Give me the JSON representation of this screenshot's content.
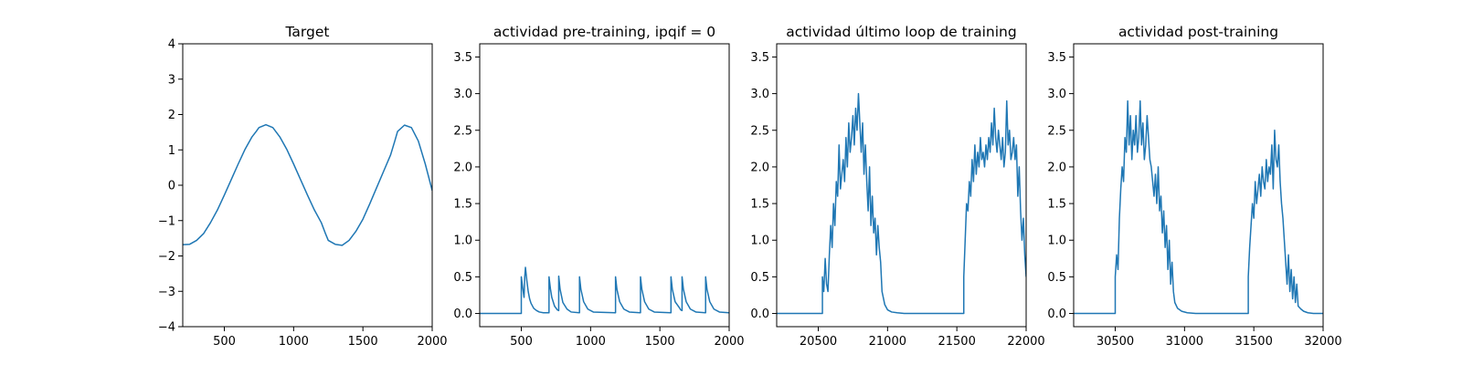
{
  "chart_data": [
    {
      "type": "line",
      "title": "Target",
      "xlim": [
        200,
        2000
      ],
      "ylim": [
        -4,
        4
      ],
      "xticks": [
        500,
        1000,
        1500,
        2000
      ],
      "yticks": [
        -4,
        -3,
        -2,
        -1,
        0,
        1,
        2,
        3,
        4
      ],
      "xtick_labels": [
        "500",
        "1000",
        "1500",
        "2000"
      ],
      "ytick_labels": [
        "−4",
        "−3",
        "−2",
        "−1",
        "0",
        "1",
        "2",
        "3",
        "4"
      ],
      "series": [
        {
          "x": [
            200,
            250,
            300,
            350,
            400,
            450,
            500,
            550,
            600,
            650,
            700,
            730,
            750,
            800,
            850,
            900,
            950,
            1000,
            1050,
            1100,
            1150,
            1200,
            1230,
            1250,
            1300,
            1350,
            1400,
            1450,
            1500,
            1550,
            1600,
            1650,
            1700,
            1730,
            1750,
            1800,
            1850,
            1900,
            1950,
            2000
          ],
          "y": [
            -1.68,
            -1.67,
            -1.56,
            -1.37,
            -1.06,
            -0.7,
            -0.28,
            0.16,
            0.6,
            1.02,
            1.37,
            1.52,
            1.63,
            1.71,
            1.63,
            1.37,
            1.02,
            0.6,
            0.16,
            -0.28,
            -0.7,
            -1.06,
            -1.37,
            -1.56,
            -1.67,
            -1.7,
            -1.56,
            -1.3,
            -0.96,
            -0.52,
            -0.06,
            0.4,
            0.86,
            1.25,
            1.52,
            1.7,
            1.63,
            1.25,
            0.6,
            -0.15
          ]
        }
      ]
    },
    {
      "type": "line",
      "title": "actividad pre-training, ipqif = 0",
      "xlim": [
        200,
        2000
      ],
      "ylim": [
        -0.18,
        3.68
      ],
      "xticks": [
        500,
        1000,
        1500,
        2000
      ],
      "yticks": [
        0.0,
        0.5,
        1.0,
        1.5,
        2.0,
        2.5,
        3.0,
        3.5
      ],
      "xtick_labels": [
        "500",
        "1000",
        "1500",
        "2000"
      ],
      "ytick_labels": [
        "0.0",
        "0.5",
        "1.0",
        "1.5",
        "2.0",
        "2.5",
        "3.0",
        "3.5"
      ],
      "series": [
        {
          "x": [
            200,
            500,
            500,
            510,
            520,
            525,
            530,
            540,
            550,
            560,
            570,
            590,
            610,
            630,
            660,
            700,
            700,
            710,
            720,
            740,
            760,
            770,
            770,
            780,
            800,
            830,
            860,
            920,
            920,
            930,
            950,
            980,
            1020,
            1180,
            1180,
            1190,
            1210,
            1240,
            1280,
            1360,
            1360,
            1370,
            1390,
            1420,
            1460,
            1580,
            1580,
            1590,
            1610,
            1640,
            1650,
            1660,
            1660,
            1670,
            1690,
            1720,
            1760,
            1830,
            1830,
            1840,
            1860,
            1890,
            1930,
            2000
          ],
          "y": [
            0.0,
            0.0,
            0.5,
            0.35,
            0.22,
            0.5,
            0.63,
            0.45,
            0.3,
            0.2,
            0.14,
            0.07,
            0.04,
            0.02,
            0.01,
            0.01,
            0.5,
            0.34,
            0.22,
            0.1,
            0.05,
            0.04,
            0.51,
            0.33,
            0.15,
            0.06,
            0.02,
            0.01,
            0.5,
            0.33,
            0.16,
            0.06,
            0.02,
            0.01,
            0.5,
            0.33,
            0.16,
            0.06,
            0.02,
            0.01,
            0.5,
            0.33,
            0.16,
            0.06,
            0.02,
            0.01,
            0.5,
            0.33,
            0.16,
            0.08,
            0.05,
            0.04,
            0.5,
            0.33,
            0.16,
            0.06,
            0.02,
            0.01,
            0.5,
            0.33,
            0.16,
            0.06,
            0.02,
            0.01
          ]
        }
      ]
    },
    {
      "type": "line",
      "title": "actividad último loop de training",
      "xlim": [
        20200,
        22000
      ],
      "ylim": [
        -0.18,
        3.68
      ],
      "xticks": [
        20500,
        21000,
        21500,
        22000
      ],
      "yticks": [
        0.0,
        0.5,
        1.0,
        1.5,
        2.0,
        2.5,
        3.0,
        3.5
      ],
      "xtick_labels": [
        "20500",
        "21000",
        "21500",
        "22000"
      ],
      "ytick_labels": [
        "0.0",
        "0.5",
        "1.0",
        "1.5",
        "2.0",
        "2.5",
        "3.0",
        "3.5"
      ],
      "series": [
        {
          "x": [
            20200,
            20530,
            20530,
            20540,
            20550,
            20560,
            20570,
            20580,
            20590,
            20600,
            20610,
            20620,
            20630,
            20640,
            20650,
            20660,
            20670,
            20680,
            20690,
            20700,
            20710,
            20720,
            20730,
            20740,
            20750,
            20760,
            20770,
            20780,
            20790,
            20800,
            20810,
            20820,
            20830,
            20840,
            20850,
            20860,
            20870,
            20880,
            20890,
            20900,
            20910,
            20920,
            20930,
            20940,
            20950,
            20960,
            20980,
            21000,
            21030,
            21070,
            21120,
            21550,
            21550,
            21560,
            21570,
            21580,
            21590,
            21600,
            21610,
            21620,
            21630,
            21640,
            21650,
            21660,
            21670,
            21680,
            21690,
            21700,
            21710,
            21720,
            21730,
            21740,
            21750,
            21760,
            21770,
            21780,
            21790,
            21800,
            21810,
            21820,
            21830,
            21840,
            21850,
            21860,
            21870,
            21880,
            21890,
            21900,
            21910,
            21920,
            21930,
            21940,
            21950,
            21960,
            21970,
            21980,
            21990,
            22000
          ],
          "y": [
            0.0,
            0.0,
            0.5,
            0.3,
            0.75,
            0.4,
            0.3,
            0.8,
            1.2,
            0.9,
            1.5,
            1.2,
            1.8,
            1.6,
            2.3,
            1.7,
            1.9,
            2.1,
            1.8,
            2.4,
            2.0,
            2.6,
            2.2,
            2.4,
            2.7,
            2.3,
            2.8,
            2.5,
            3.0,
            2.6,
            2.2,
            2.6,
            1.9,
            2.3,
            1.8,
            1.4,
            2.0,
            1.2,
            1.6,
            1.1,
            1.3,
            0.8,
            1.2,
            0.9,
            0.7,
            0.3,
            0.12,
            0.05,
            0.02,
            0.01,
            0.0,
            0.0,
            0.5,
            1.0,
            1.5,
            1.4,
            1.8,
            1.6,
            2.1,
            1.8,
            2.3,
            1.9,
            2.2,
            2.0,
            2.4,
            2.1,
            2.2,
            2.0,
            2.3,
            2.1,
            2.4,
            2.2,
            2.6,
            2.3,
            2.8,
            2.4,
            2.2,
            2.5,
            2.3,
            2.1,
            2.4,
            2.0,
            2.2,
            2.9,
            2.3,
            2.5,
            2.1,
            2.2,
            2.4,
            2.1,
            2.3,
            1.6,
            2.0,
            1.4,
            1.0,
            1.3,
            0.8,
            0.5
          ]
        }
      ]
    },
    {
      "type": "line",
      "title": "actividad post-training",
      "xlim": [
        30200,
        32000
      ],
      "ylim": [
        -0.18,
        3.68
      ],
      "xticks": [
        30500,
        31000,
        31500,
        32000
      ],
      "yticks": [
        0.0,
        0.5,
        1.0,
        1.5,
        2.0,
        2.5,
        3.0,
        3.5
      ],
      "xtick_labels": [
        "30500",
        "31000",
        "31500",
        "32000"
      ],
      "ytick_labels": [
        "0.0",
        "0.5",
        "1.0",
        "1.5",
        "2.0",
        "2.5",
        "3.0",
        "3.5"
      ],
      "series": [
        {
          "x": [
            30200,
            30500,
            30500,
            30510,
            30520,
            30530,
            30540,
            30550,
            30560,
            30570,
            30580,
            30590,
            30600,
            30610,
            30620,
            30630,
            30640,
            30650,
            30660,
            30670,
            30680,
            30690,
            30700,
            30710,
            30720,
            30730,
            30740,
            30750,
            30760,
            30770,
            30780,
            30790,
            30800,
            30810,
            30820,
            30830,
            30840,
            30850,
            30860,
            30870,
            30880,
            30890,
            30900,
            30910,
            30920,
            30930,
            30950,
            30980,
            31020,
            31080,
            31460,
            31460,
            31470,
            31480,
            31490,
            31500,
            31510,
            31520,
            31530,
            31540,
            31550,
            31560,
            31570,
            31580,
            31590,
            31600,
            31610,
            31620,
            31630,
            31640,
            31650,
            31660,
            31670,
            31680,
            31690,
            31700,
            31710,
            31720,
            31730,
            31740,
            31750,
            31760,
            31770,
            31780,
            31790,
            31800,
            31810,
            31820,
            31840,
            31860,
            31890,
            31930,
            32000
          ],
          "y": [
            0.0,
            0.0,
            0.5,
            0.8,
            0.6,
            1.3,
            1.7,
            2.0,
            1.8,
            2.4,
            2.2,
            2.9,
            2.3,
            2.7,
            2.1,
            2.5,
            2.3,
            2.7,
            2.2,
            2.4,
            2.9,
            2.3,
            2.6,
            2.1,
            2.3,
            2.7,
            2.4,
            2.1,
            2.0,
            1.8,
            1.6,
            1.9,
            1.5,
            2.0,
            1.4,
            1.6,
            1.1,
            1.4,
            0.9,
            1.2,
            0.6,
            1.0,
            0.4,
            0.7,
            0.3,
            0.15,
            0.07,
            0.03,
            0.01,
            0.0,
            0.0,
            0.5,
            0.9,
            1.2,
            1.5,
            1.3,
            1.8,
            1.5,
            1.7,
            1.9,
            1.6,
            2.0,
            1.8,
            1.7,
            2.1,
            1.8,
            2.0,
            1.9,
            2.3,
            1.7,
            2.5,
            2.1,
            2.0,
            2.3,
            1.8,
            1.5,
            1.3,
            1.0,
            0.7,
            0.4,
            0.8,
            0.3,
            0.6,
            0.2,
            0.5,
            0.15,
            0.4,
            0.1,
            0.06,
            0.03,
            0.01,
            0.0,
            0.0
          ]
        }
      ]
    }
  ]
}
